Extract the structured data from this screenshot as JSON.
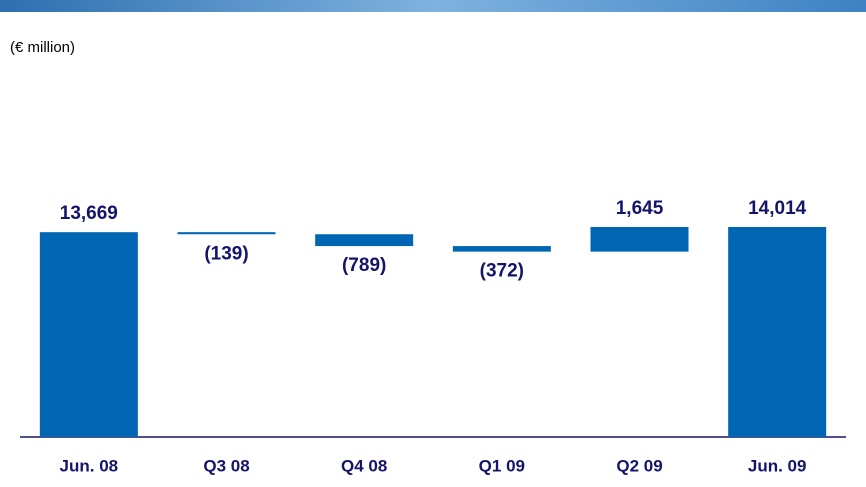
{
  "chart_data": {
    "type": "waterfall",
    "subtitle": "(€ million)",
    "categories": [
      "Jun. 08",
      "Q3 08",
      "Q4 08",
      "Q1 09",
      "Q2 09",
      "Jun. 09"
    ],
    "values": [
      13669,
      -139,
      -789,
      -372,
      1645,
      14014
    ],
    "value_labels": [
      "13,669",
      "(139)",
      "(789)",
      "(372)",
      "1,645",
      "14,014"
    ],
    "color": "#0066b3"
  }
}
